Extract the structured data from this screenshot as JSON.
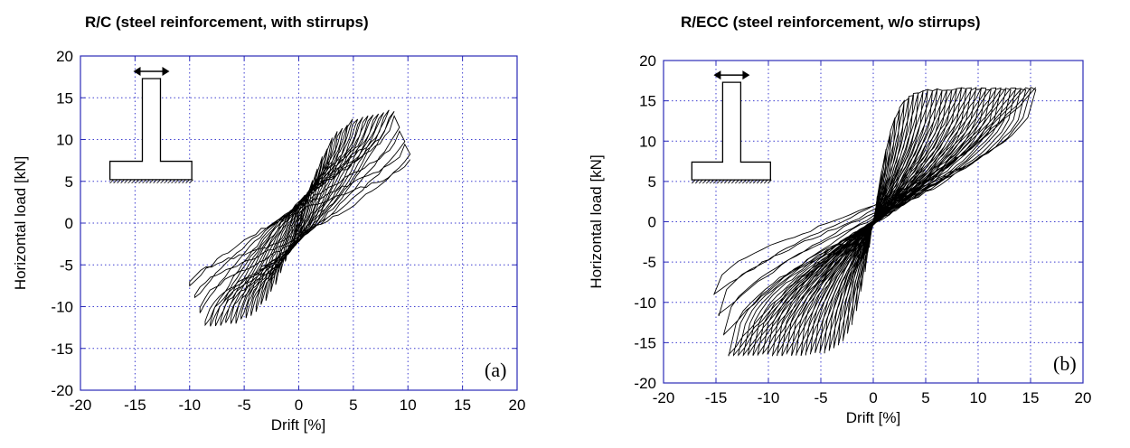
{
  "chart_data": [
    {
      "type": "line",
      "title": "R/C (steel reinforcement, with stirrups)",
      "panel_label": "(a)",
      "xlabel": "Drift [%]",
      "ylabel": "Horizontal load [kN]",
      "xlim": [
        -20,
        20
      ],
      "ylim": [
        -20,
        20
      ],
      "xticks": [
        "-20",
        "-15",
        "-10",
        "-5",
        "0",
        "5",
        "10",
        "15",
        "20"
      ],
      "yticks": [
        "20",
        "15",
        "10",
        "5",
        "0",
        "-5",
        "-10",
        "-15",
        "-20"
      ],
      "grid": true,
      "grid_style": "dotted blue",
      "line_color": "#000000",
      "grid_color": "#3f3fd0",
      "hysteresis": {
        "max_drift": 10.2,
        "neg_drift": -10,
        "peak_load": 13.5,
        "min_load": -12.5,
        "end_load_pos": 5.8,
        "end_load_neg": -6,
        "pinched": true
      },
      "inset_icon": "column-footing-icon"
    },
    {
      "type": "line",
      "title": "R/ECC (steel reinforcement, w/o stirrups)",
      "panel_label": "(b)",
      "xlabel": "Drift [%]",
      "ylabel": "Horizontal load [kN]",
      "xlim": [
        -20,
        20
      ],
      "ylim": [
        -20,
        20
      ],
      "xticks": [
        "-20",
        "-15",
        "-10",
        "-5",
        "0",
        "5",
        "10",
        "15",
        "20"
      ],
      "yticks": [
        "20",
        "15",
        "10",
        "5",
        "0",
        "-5",
        "-10",
        "-15",
        "-20"
      ],
      "grid": true,
      "grid_style": "dotted blue",
      "line_color": "#000000",
      "grid_color": "#3f3fd0",
      "hysteresis": {
        "max_drift": 15.5,
        "neg_drift": -15.2,
        "peak_load": 16.5,
        "min_load": -16.5,
        "end_load_pos": 15,
        "end_load_neg": -7,
        "pinched": false
      },
      "inset_icon": "column-footing-icon"
    }
  ]
}
